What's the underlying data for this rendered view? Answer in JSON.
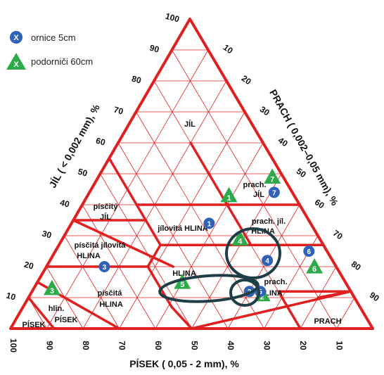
{
  "legend": [
    {
      "marker": "circle",
      "symbol": "X",
      "label": "ornice 5cm",
      "color": "#2f62b8"
    },
    {
      "marker": "triangle",
      "symbol": "X",
      "label": "podorniči 60cm",
      "color": "#2eaa4a"
    }
  ],
  "axes": {
    "clay_title": "JÍL ( < 0,002 mm), %",
    "silt_title": "PRACH ( 0,002–0,05 mm), %",
    "sand_title": "PÍSEK ( 0,05 - 2 mm), %",
    "clay_ticks": [
      "10",
      "20",
      "30",
      "40",
      "50",
      "60",
      "70",
      "80",
      "90",
      "100"
    ],
    "silt_ticks": [
      "10",
      "20",
      "30",
      "40",
      "50",
      "60",
      "70",
      "80",
      "90",
      "100"
    ],
    "sand_ticks": [
      "100",
      "90",
      "80",
      "70",
      "60",
      "50",
      "40",
      "30",
      "20",
      "10"
    ]
  },
  "regions": {
    "jil": "JÍL",
    "prach_jil_1": "prach.",
    "prach_jil_2": "JÍL",
    "piscity_jil_1": "písčitý",
    "piscity_jil_2": "JÍL",
    "jilovita_hlina": "jílovitá HLINA",
    "prach_jil_hlina_1": "prach. jíl.",
    "prach_jil_hlina_2": "HLINA",
    "piscita_jilovita_hlina_1": "písčitá jílovitá",
    "piscita_jilovita_hlina_2": "HLINA",
    "hlina": "HLINA",
    "prach_hlina_1": "prach.",
    "prach_hlina_2": "HLINA",
    "piscita_hlina_1": "písčitá",
    "piscita_hlina_2": "HLINA",
    "hlin_pisek_1": "hlin.",
    "hlin_pisek_2": "PÍSEK",
    "pisek": "PÍSEK",
    "prach": "PRACH"
  },
  "chart_data": {
    "type": "scatter",
    "series": [
      {
        "name": "ornice 5cm",
        "marker": "circle",
        "color": "#2f62b8",
        "points": [
          {
            "label": "1",
            "sand": 28,
            "clay": 34
          },
          {
            "label": "2",
            "sand": 28,
            "clay": 12
          },
          {
            "label": "3",
            "sand": 64,
            "clay": 20
          },
          {
            "label": "4",
            "sand": 18,
            "clay": 22
          },
          {
            "label": "5",
            "sand": 25,
            "clay": 12
          },
          {
            "label": "6",
            "sand": 5,
            "clay": 25
          },
          {
            "label": "7",
            "sand": 5,
            "clay": 44
          }
        ]
      },
      {
        "name": "podorniči 60cm",
        "marker": "triangle",
        "color": "#2eaa4a",
        "points": [
          {
            "label": "1",
            "sand": 18,
            "clay": 43
          },
          {
            "label": "2",
            "sand": 25,
            "clay": 11
          },
          {
            "label": "3",
            "sand": 82,
            "clay": 13
          },
          {
            "label": "4",
            "sand": 22,
            "clay": 29
          },
          {
            "label": "5",
            "sand": 45,
            "clay": 15
          },
          {
            "label": "6",
            "sand": 6,
            "clay": 20
          },
          {
            "label": "7",
            "sand": 3,
            "clay": 49
          }
        ]
      }
    ]
  },
  "colors": {
    "boundary": "#e02020",
    "grid": "#e02020",
    "highlight": "#1f3d44",
    "circle": "#2f62b8",
    "triangle": "#2eaa4a"
  }
}
